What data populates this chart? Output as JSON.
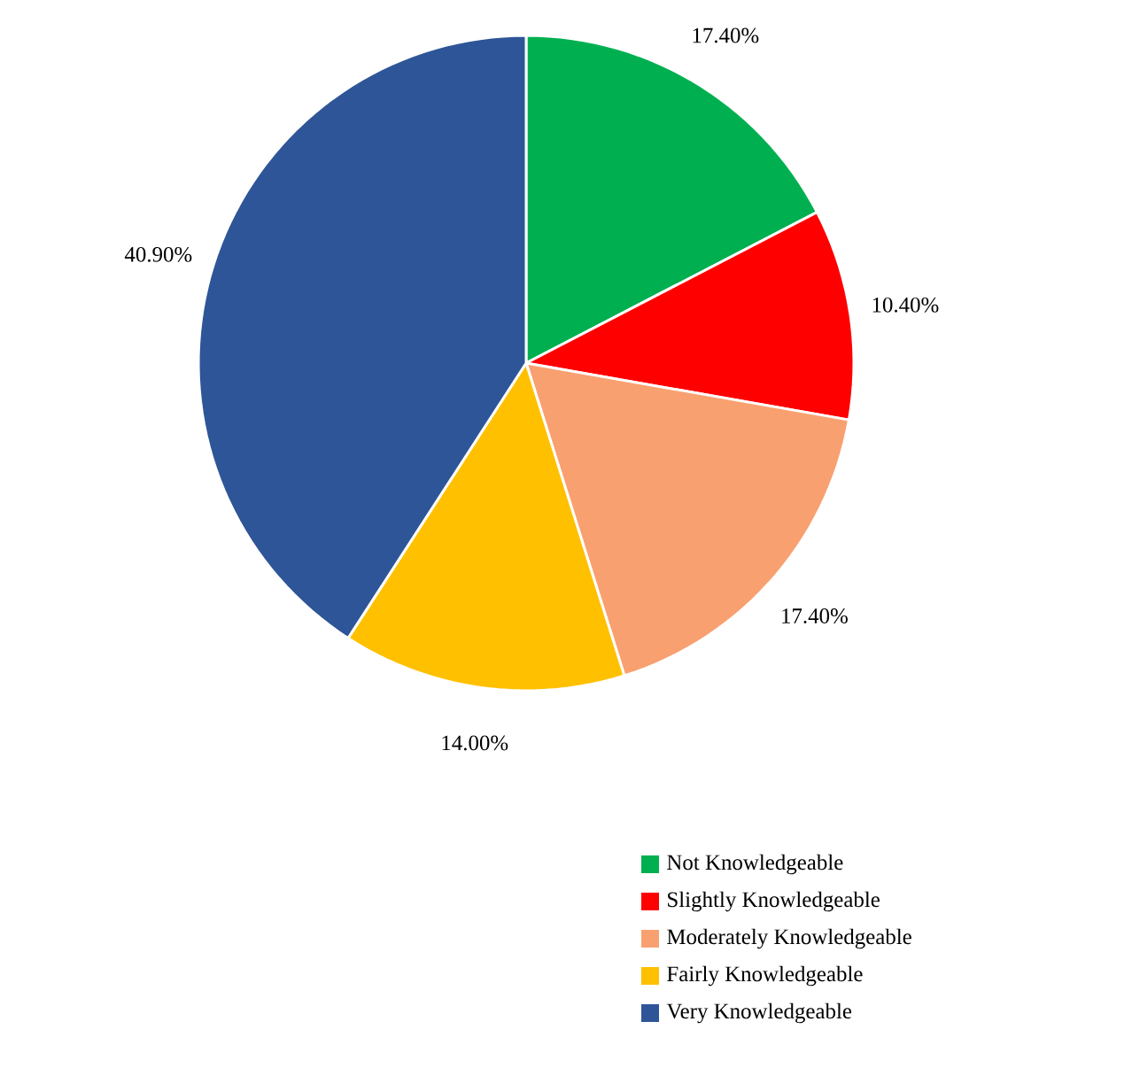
{
  "chart_data": {
    "type": "pie",
    "categories": [
      "Not Knowledgeable",
      "Slightly Knowledgeable",
      "Moderately Knowledgeable",
      "Fairly Knowledgeable",
      "Very Knowledgeable"
    ],
    "values": [
      17.4,
      10.4,
      17.4,
      14.0,
      40.9
    ],
    "colors": [
      "#00b050",
      "#ff0000",
      "#f9a070",
      "#ffc000",
      "#2e5597"
    ],
    "value_labels": [
      "17.40%",
      "10.40%",
      "17.40%",
      "14.00%",
      "40.90%"
    ],
    "legend": "bottom right"
  }
}
